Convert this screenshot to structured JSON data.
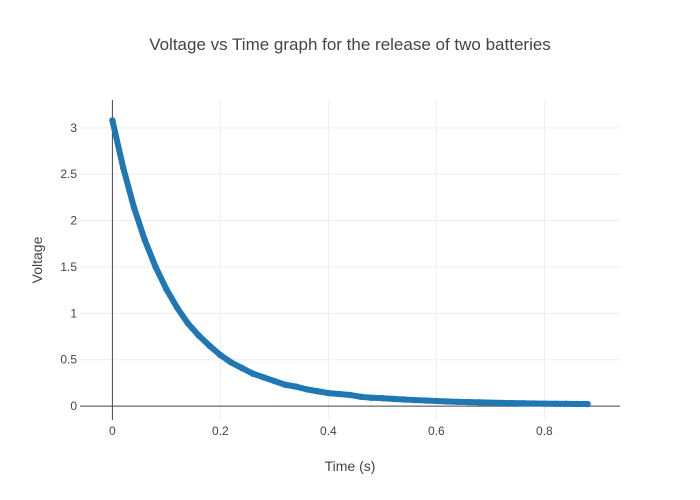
{
  "chart_data": {
    "type": "scatter",
    "title": "Voltage vs Time graph for the release of two batteries",
    "xlabel": "Time (s)",
    "ylabel": "Voltage",
    "xlim": [
      -0.06,
      0.94
    ],
    "ylim": [
      -0.15,
      3.3
    ],
    "x_ticks": [
      0,
      0.2,
      0.4,
      0.6,
      0.8
    ],
    "x_tick_labels": [
      "0",
      "0.2",
      "0.4",
      "0.6",
      "0.8"
    ],
    "y_ticks": [
      0,
      0.5,
      1,
      1.5,
      2,
      2.5,
      3
    ],
    "y_tick_labels": [
      "0",
      "0.5",
      "1",
      "1.5",
      "2",
      "2.5",
      "3"
    ],
    "grid": true,
    "legend": "none",
    "series": [
      {
        "color": "#1f77b4",
        "x": [
          0,
          0.02,
          0.04,
          0.06,
          0.08,
          0.1,
          0.12,
          0.14,
          0.16,
          0.18,
          0.2,
          0.22,
          0.24,
          0.26,
          0.28,
          0.3,
          0.32,
          0.34,
          0.36,
          0.38,
          0.4,
          0.42,
          0.44,
          0.46,
          0.48,
          0.5,
          0.52,
          0.54,
          0.56,
          0.58,
          0.6,
          0.62,
          0.64,
          0.66,
          0.68,
          0.7,
          0.72,
          0.74,
          0.76,
          0.78,
          0.8,
          0.82,
          0.84,
          0.86,
          0.88
        ],
        "y": [
          3.08,
          2.57,
          2.14,
          1.79,
          1.5,
          1.26,
          1.06,
          0.89,
          0.76,
          0.65,
          0.55,
          0.47,
          0.41,
          0.35,
          0.31,
          0.27,
          0.23,
          0.21,
          0.18,
          0.16,
          0.14,
          0.13,
          0.12,
          0.1,
          0.09,
          0.085,
          0.078,
          0.071,
          0.065,
          0.06,
          0.055,
          0.05,
          0.046,
          0.043,
          0.04,
          0.037,
          0.034,
          0.032,
          0.03,
          0.028,
          0.026,
          0.025,
          0.024,
          0.023,
          0.022
        ]
      }
    ]
  }
}
